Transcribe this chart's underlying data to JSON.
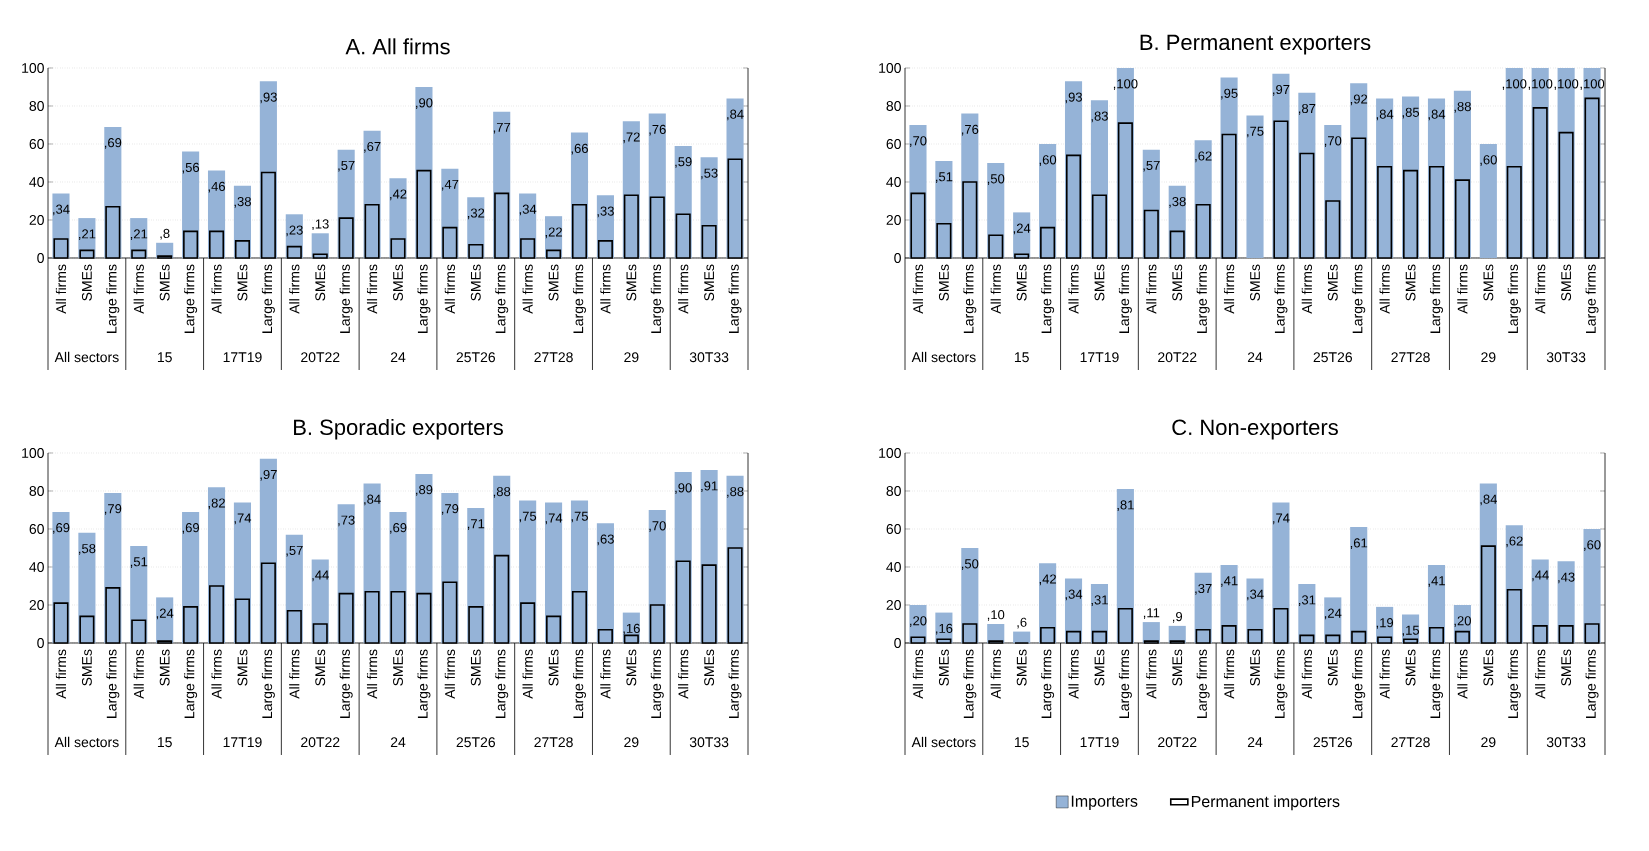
{
  "chart_data": [
    {
      "type": "bar",
      "title": "A. All firms",
      "categories": [
        "All firms",
        "SMEs",
        "Large firms",
        "All firms",
        "SMEs",
        "Large firms",
        "All firms",
        "SMEs",
        "Large firms",
        "All firms",
        "SMEs",
        "Large firms",
        "All firms",
        "SMEs",
        "Large firms",
        "All firms",
        "SMEs",
        "Large firms",
        "All firms",
        "SMEs",
        "Large firms",
        "All firms",
        "SMEs",
        "Large firms",
        "All firms",
        "SMEs",
        "Large firms"
      ],
      "annotations": [
        "All sectors",
        "15",
        "17T19",
        "20T22",
        "24",
        "25T26",
        "27T28",
        "29",
        "30T33"
      ],
      "ylim": [
        0,
        100
      ],
      "yticks": [
        0,
        20,
        40,
        60,
        80,
        100
      ],
      "grid": "y",
      "series": [
        {
          "color": "#95b3d7",
          "values": [
            34,
            21,
            69,
            21,
            8,
            56,
            46,
            38,
            93,
            23,
            13,
            57,
            67,
            42,
            90,
            47,
            32,
            77,
            34,
            22,
            66,
            33,
            72,
            76,
            59,
            53,
            84
          ],
          "value_labels": [
            ",34",
            ",21",
            ",69",
            ",21",
            ",8",
            ",56",
            ",46",
            ",38",
            ",93",
            ",23",
            ",13",
            ",57",
            ",67",
            ",42",
            ",90",
            ",47",
            ",32",
            ",77",
            ",34",
            ",22",
            ",66",
            ",33",
            ",72",
            ",76",
            ",59",
            ",53",
            ",84"
          ]
        },
        {
          "color": "#000000",
          "values": [
            10,
            4,
            27,
            4,
            1,
            14,
            14,
            9,
            45,
            6,
            2,
            21,
            28,
            10,
            46,
            16,
            7,
            34,
            10,
            4,
            28,
            9,
            33,
            32,
            23,
            17,
            52
          ]
        }
      ]
    },
    {
      "type": "bar",
      "title": "B. Permanent exporters",
      "categories": [
        "All firms",
        "SMEs",
        "Large firms",
        "All firms",
        "SMEs",
        "Large firms",
        "All firms",
        "SMEs",
        "Large firms",
        "All firms",
        "SMEs",
        "Large firms",
        "All firms",
        "SMEs",
        "Large firms",
        "All firms",
        "SMEs",
        "Large firms",
        "All firms",
        "SMEs",
        "Large firms",
        "All firms",
        "SMEs",
        "Large firms",
        "All firms",
        "SMEs",
        "Large firms"
      ],
      "annotations": [
        "All sectors",
        "15",
        "17T19",
        "20T22",
        "24",
        "25T26",
        "27T28",
        "29",
        "30T33"
      ],
      "ylim": [
        0,
        100
      ],
      "yticks": [
        0,
        20,
        40,
        60,
        80,
        100
      ],
      "grid": "y",
      "series": [
        {
          "color": "#95b3d7",
          "values": [
            70,
            51,
            76,
            50,
            24,
            60,
            93,
            83,
            100,
            57,
            38,
            62,
            95,
            75,
            97,
            87,
            70,
            92,
            84,
            85,
            84,
            88,
            60,
            100,
            100,
            100,
            100
          ],
          "value_labels": [
            ",70",
            ",51",
            ",76",
            ",50",
            ",24",
            ",60",
            ",93",
            ",83",
            ",100",
            ",57",
            ",38",
            ",62",
            ",95",
            ",75",
            ",97",
            ",87",
            ",70",
            ",92",
            ",84",
            ",85",
            ",84",
            ",88",
            ",60",
            ",100",
            ",100",
            ",100",
            ",100"
          ]
        },
        {
          "color": "#000000",
          "values": [
            34,
            18,
            40,
            12,
            2,
            16,
            54,
            33,
            71,
            25,
            14,
            28,
            65,
            null,
            72,
            55,
            30,
            63,
            48,
            46,
            48,
            41,
            null,
            48,
            79,
            66,
            84
          ]
        }
      ]
    },
    {
      "type": "bar",
      "title": "B. Sporadic exporters",
      "categories": [
        "All firms",
        "SMEs",
        "Large firms",
        "All firms",
        "SMEs",
        "Large firms",
        "All firms",
        "SMEs",
        "Large firms",
        "All firms",
        "SMEs",
        "Large firms",
        "All firms",
        "SMEs",
        "Large firms",
        "All firms",
        "SMEs",
        "Large firms",
        "All firms",
        "SMEs",
        "Large firms",
        "All firms",
        "SMEs",
        "Large firms",
        "All firms",
        "SMEs",
        "Large firms"
      ],
      "annotations": [
        "All sectors",
        "15",
        "17T19",
        "20T22",
        "24",
        "25T26",
        "27T28",
        "29",
        "30T33"
      ],
      "ylim": [
        0,
        100
      ],
      "yticks": [
        0,
        20,
        40,
        60,
        80,
        100
      ],
      "grid": "y",
      "series": [
        {
          "color": "#95b3d7",
          "values": [
            69,
            58,
            79,
            51,
            24,
            69,
            82,
            74,
            97,
            57,
            44,
            73,
            84,
            69,
            89,
            79,
            71,
            88,
            75,
            74,
            75,
            63,
            16,
            70,
            90,
            91,
            88
          ],
          "value_labels": [
            ",69",
            ",58",
            ",79",
            ",51",
            ",24",
            ",69",
            ",82",
            ",74",
            ",97",
            ",57",
            ",44",
            ",73",
            ",84",
            ",69",
            ",89",
            ",79",
            ",71",
            ",88",
            ",75",
            ",74",
            ",75",
            ",63",
            ",16",
            ",70",
            ",90",
            ",91",
            ",88"
          ]
        },
        {
          "color": "#000000",
          "values": [
            21,
            14,
            29,
            12,
            1,
            19,
            30,
            23,
            42,
            17,
            10,
            26,
            27,
            27,
            26,
            32,
            19,
            46,
            21,
            14,
            27,
            7,
            4,
            20,
            43,
            41,
            50
          ]
        }
      ]
    },
    {
      "type": "bar",
      "title": "C. Non-exporters",
      "categories": [
        "All firms",
        "SMEs",
        "Large firms",
        "All firms",
        "SMEs",
        "Large firms",
        "All firms",
        "SMEs",
        "Large firms",
        "All firms",
        "SMEs",
        "Large firms",
        "All firms",
        "SMEs",
        "Large firms",
        "All firms",
        "SMEs",
        "Large firms",
        "All firms",
        "SMEs",
        "Large firms",
        "All firms",
        "SMEs",
        "Large firms",
        "All firms",
        "SMEs",
        "Large firms"
      ],
      "annotations": [
        "All sectors",
        "15",
        "17T19",
        "20T22",
        "24",
        "25T26",
        "27T28",
        "29",
        "30T33"
      ],
      "ylim": [
        0,
        100
      ],
      "yticks": [
        0,
        20,
        40,
        60,
        80,
        100
      ],
      "grid": "y",
      "legend": "bottom",
      "series": [
        {
          "name": "Importers",
          "color": "#95b3d7",
          "values": [
            20,
            16,
            50,
            10,
            6,
            42,
            34,
            31,
            81,
            11,
            9,
            37,
            41,
            34,
            74,
            31,
            24,
            61,
            19,
            15,
            41,
            20,
            84,
            62,
            44,
            43,
            60
          ],
          "value_labels": [
            ",20",
            ",16",
            ",50",
            ",10",
            ",6",
            ",42",
            ",34",
            ",31",
            ",81",
            ",11",
            ",9",
            ",37",
            ",41",
            ",34",
            ",74",
            ",31",
            ",24",
            ",61",
            ",19",
            ",15",
            ",41",
            ",20",
            ",84",
            ",62",
            ",44",
            ",43",
            ",60"
          ]
        },
        {
          "name": "Permanent importers",
          "color": "#000000",
          "values": [
            3,
            2,
            10,
            1,
            0,
            8,
            6,
            6,
            18,
            1,
            1,
            7,
            9,
            7,
            18,
            4,
            4,
            6,
            3,
            2,
            8,
            6,
            51,
            28,
            9,
            9,
            10
          ]
        }
      ]
    }
  ]
}
